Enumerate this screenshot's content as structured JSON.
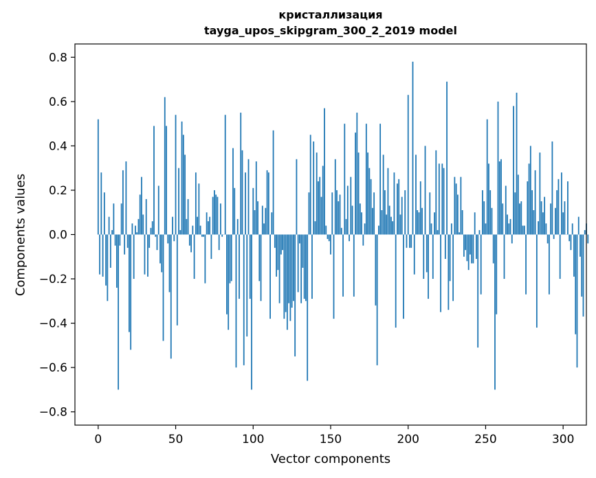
{
  "chart_data": {
    "type": "bar",
    "title": "кристаллизация",
    "subtitle": "tayga_upos_skipgram_300_2_2019 model",
    "xlabel": "Vector components",
    "ylabel": "Components values",
    "xlim": [
      -15,
      315
    ],
    "ylim": [
      -0.86,
      0.86
    ],
    "xticks": [
      0,
      50,
      100,
      150,
      200,
      250,
      300
    ],
    "yticks": [
      -0.8,
      -0.6,
      -0.4,
      -0.2,
      0.0,
      0.2,
      0.4,
      0.6,
      0.8
    ],
    "ytick_labels": [
      "−0.8",
      "−0.6",
      "−0.4",
      "−0.2",
      "0.0",
      "0.2",
      "0.4",
      "0.6",
      "0.8"
    ],
    "bar_color": "#1f77b4",
    "values": [
      0.52,
      -0.18,
      0.28,
      -0.19,
      0.19,
      -0.23,
      -0.3,
      0.08,
      -0.15,
      0.02,
      0.14,
      -0.05,
      -0.24,
      -0.7,
      -0.05,
      0.14,
      0.29,
      -0.09,
      0.33,
      -0.06,
      -0.44,
      -0.52,
      0.05,
      -0.2,
      0.04,
      0.01,
      0.07,
      0.18,
      0.26,
      0.09,
      -0.18,
      0.16,
      -0.19,
      -0.06,
      0.03,
      0.06,
      0.49,
      -0.01,
      -0.07,
      0.22,
      -0.13,
      -0.17,
      -0.48,
      0.62,
      0.49,
      -0.04,
      -0.26,
      -0.56,
      0.08,
      -0.03,
      0.54,
      -0.41,
      0.3,
      0.02,
      0.51,
      0.45,
      0.36,
      0.07,
      0.16,
      -0.05,
      -0.08,
      0.04,
      -0.2,
      0.28,
      0.08,
      0.23,
      0.04,
      -0.01,
      -0.01,
      -0.22,
      0.1,
      0.06,
      0.08,
      -0.11,
      0.17,
      0.2,
      0.18,
      0.17,
      -0.07,
      0.14,
      -0.01,
      0.0,
      0.54,
      -0.36,
      -0.43,
      -0.22,
      -0.21,
      0.39,
      0.21,
      -0.6,
      0.07,
      -0.29,
      0.55,
      0.38,
      -0.59,
      0.28,
      -0.46,
      0.34,
      -0.29,
      -0.7,
      0.21,
      0.11,
      0.33,
      0.15,
      -0.21,
      -0.3,
      0.13,
      0.05,
      0.12,
      0.29,
      0.28,
      -0.38,
      0.1,
      0.47,
      -0.06,
      -0.19,
      -0.16,
      -0.31,
      -0.09,
      -0.07,
      -0.38,
      -0.35,
      -0.43,
      -0.31,
      -0.39,
      -0.33,
      -0.3,
      -0.55,
      0.34,
      -0.26,
      -0.04,
      -0.31,
      -0.15,
      -0.29,
      -0.3,
      -0.66,
      0.19,
      0.45,
      -0.29,
      0.42,
      0.06,
      0.37,
      0.24,
      0.26,
      0.17,
      0.31,
      0.57,
      0.04,
      -0.02,
      -0.03,
      -0.09,
      0.19,
      -0.38,
      0.34,
      0.2,
      0.15,
      0.18,
      0.03,
      -0.28,
      0.5,
      0.07,
      0.22,
      -0.03,
      0.26,
      0.13,
      -0.28,
      0.46,
      0.55,
      0.37,
      0.14,
      0.1,
      -0.05,
      0.05,
      0.5,
      0.37,
      0.3,
      0.25,
      0.12,
      0.19,
      -0.32,
      -0.59,
      0.04,
      0.5,
      0.11,
      0.36,
      0.2,
      0.09,
      0.3,
      0.13,
      0.08,
      0.06,
      0.28,
      -0.42,
      0.23,
      0.25,
      0.09,
      0.17,
      -0.38,
      0.2,
      -0.06,
      0.63,
      -0.06,
      -0.06,
      0.78,
      -0.18,
      0.36,
      0.11,
      0.1,
      0.24,
      0.12,
      -0.2,
      0.4,
      -0.17,
      -0.29,
      0.19,
      0.05,
      -0.2,
      0.1,
      0.38,
      0.02,
      0.32,
      -0.35,
      0.32,
      0.3,
      -0.11,
      0.69,
      -0.34,
      -0.21,
      0.05,
      -0.3,
      0.26,
      0.23,
      0.18,
      0.01,
      0.26,
      0.11,
      -0.1,
      -0.07,
      -0.12,
      -0.16,
      -0.09,
      -0.13,
      -0.13,
      0.1,
      -0.11,
      -0.51,
      0.02,
      -0.27,
      0.2,
      0.15,
      0.05,
      0.52,
      0.32,
      0.2,
      0.12,
      -0.13,
      -0.7,
      -0.36,
      0.6,
      0.33,
      0.34,
      0.14,
      -0.2,
      0.22,
      0.09,
      0.05,
      0.07,
      -0.04,
      0.58,
      0.19,
      0.64,
      0.27,
      0.14,
      0.15,
      0.04,
      0.04,
      -0.27,
      0.24,
      0.32,
      0.4,
      0.2,
      0.11,
      0.29,
      -0.42,
      0.06,
      0.37,
      0.15,
      0.1,
      0.17,
      0.05,
      -0.04,
      -0.27,
      0.14,
      0.42,
      -0.02,
      0.12,
      0.2,
      0.25,
      -0.2,
      0.28,
      0.1,
      0.15,
      0.0,
      0.24,
      -0.03,
      -0.07,
      0.05,
      -0.19,
      -0.45,
      -0.6,
      0.08,
      -0.1,
      -0.28,
      -0.37,
      0.02,
      0.05,
      -0.04
    ]
  }
}
